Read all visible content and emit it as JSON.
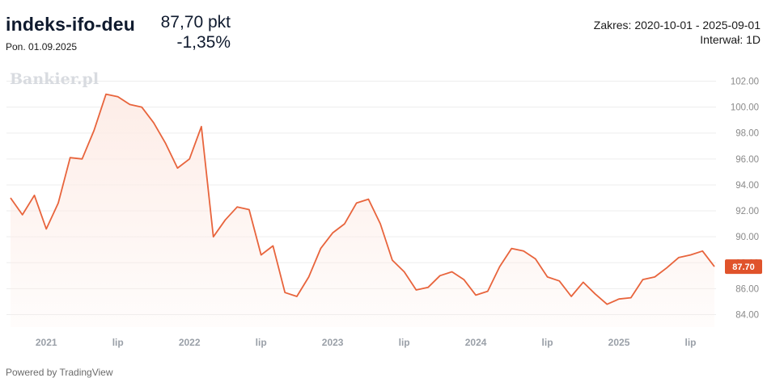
{
  "header": {
    "ticker": "indeks-ifo-deu",
    "date": "Pon. 01.09.2025",
    "price": "87,70 pkt",
    "change": "-1,35%",
    "range": "Zakres: 2020-10-01 - 2025-09-01",
    "interval": "Interwał: 1D"
  },
  "watermark": "Bankier.pl",
  "footer": "Powered by TradingView",
  "colors": {
    "line": "#e8643c",
    "fill": "#fdece6",
    "grid": "#ededed",
    "price_label_bg": "#e0532b"
  },
  "chart_data": {
    "type": "area",
    "x": [
      "2020-10",
      "2020-11",
      "2020-12",
      "2021-01",
      "2021-02",
      "2021-03",
      "2021-04",
      "2021-05",
      "2021-06",
      "2021-07",
      "2021-08",
      "2021-09",
      "2021-10",
      "2021-11",
      "2021-12",
      "2022-01",
      "2022-02",
      "2022-03",
      "2022-04",
      "2022-05",
      "2022-06",
      "2022-07",
      "2022-08",
      "2022-09",
      "2022-10",
      "2022-11",
      "2022-12",
      "2023-01",
      "2023-02",
      "2023-03",
      "2023-04",
      "2023-05",
      "2023-06",
      "2023-07",
      "2023-08",
      "2023-09",
      "2023-10",
      "2023-11",
      "2023-12",
      "2024-01",
      "2024-02",
      "2024-03",
      "2024-04",
      "2024-05",
      "2024-06",
      "2024-07",
      "2024-08",
      "2024-09",
      "2024-10",
      "2024-11",
      "2024-12",
      "2025-01",
      "2025-02",
      "2025-03",
      "2025-04",
      "2025-05",
      "2025-06",
      "2025-07",
      "2025-08",
      "2025-09"
    ],
    "series": [
      {
        "values": [
          93.0,
          91.7,
          93.2,
          90.6,
          92.6,
          96.1,
          96.0,
          98.2,
          101.0,
          100.8,
          100.2,
          100.0,
          98.8,
          97.2,
          95.3,
          96.0,
          98.5,
          90.0,
          91.3,
          92.3,
          92.1,
          88.6,
          89.3,
          85.7,
          85.4,
          86.9,
          89.1,
          90.3,
          91.0,
          92.6,
          92.9,
          91.0,
          88.2,
          87.3,
          85.9,
          86.1,
          87.0,
          87.3,
          86.7,
          85.5,
          85.8,
          87.7,
          89.1,
          88.9,
          88.3,
          86.9,
          86.6,
          85.4,
          86.5,
          85.6,
          84.8,
          85.2,
          85.3,
          86.7,
          86.9,
          87.6,
          88.4,
          88.6,
          88.9,
          87.7
        ]
      }
    ],
    "ylim": [
      83.0,
      103.0
    ],
    "yticks": [
      "102.00",
      "100.00",
      "98.00",
      "96.00",
      "94.00",
      "92.00",
      "90.00",
      "88.00",
      "86.00",
      "84.00"
    ],
    "ytick_values": [
      102,
      100,
      98,
      96,
      94,
      92,
      90,
      88,
      86,
      84
    ],
    "xticks": [
      "2021",
      "lip",
      "2022",
      "lip",
      "2023",
      "lip",
      "2024",
      "lip",
      "2025",
      "lip"
    ],
    "xtick_dates": [
      "2021-01",
      "2021-07",
      "2022-01",
      "2022-07",
      "2023-01",
      "2023-07",
      "2024-01",
      "2024-07",
      "2025-01",
      "2025-07"
    ],
    "last_value_label": "87.70",
    "grid": true
  }
}
